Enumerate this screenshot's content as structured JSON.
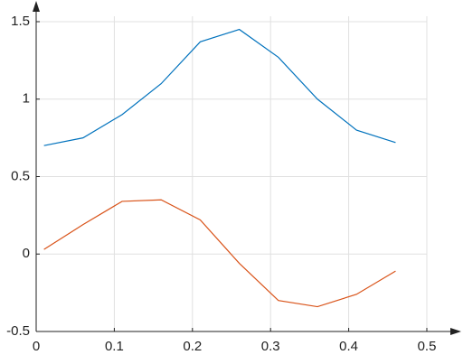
{
  "chart_data": {
    "type": "line",
    "x": [
      0.01,
      0.06,
      0.11,
      0.16,
      0.21,
      0.26,
      0.31,
      0.36,
      0.41,
      0.46
    ],
    "series": [
      {
        "color": "#0072bd",
        "values": [
          0.7,
          0.75,
          0.9,
          1.1,
          1.37,
          1.45,
          1.27,
          1.0,
          0.8,
          0.72
        ]
      },
      {
        "color": "#d95319",
        "values": [
          0.03,
          0.19,
          0.34,
          0.35,
          0.22,
          -0.06,
          -0.3,
          -0.34,
          -0.26,
          -0.11
        ]
      }
    ],
    "xlim": [
      0,
      0.5
    ],
    "xticks": [
      0,
      0.1,
      0.2,
      0.3,
      0.4,
      0.5
    ],
    "ylim": [
      -0.5,
      1.5
    ],
    "yticks": [
      -0.5,
      0,
      0.5,
      1,
      1.5
    ],
    "grid": true
  }
}
